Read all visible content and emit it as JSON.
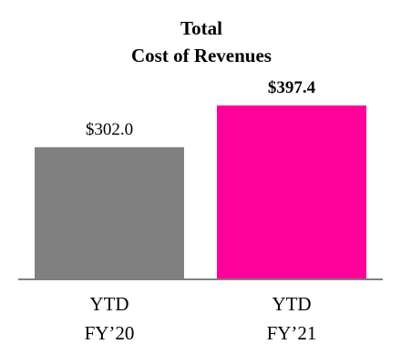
{
  "chart_data": {
    "type": "bar",
    "title": [
      "Total",
      "Cost of Revenues"
    ],
    "categories": [
      [
        "YTD",
        "FY’20"
      ],
      [
        "YTD",
        "FY’21"
      ]
    ],
    "values": [
      302.0,
      397.4
    ],
    "value_labels": [
      "$302.0",
      "$397.4"
    ],
    "value_label_weights": [
      "normal",
      "bold"
    ],
    "colors": [
      "#808080",
      "#ff0099"
    ],
    "baseline_color": "#808080",
    "ylim": [
      0,
      420
    ]
  }
}
